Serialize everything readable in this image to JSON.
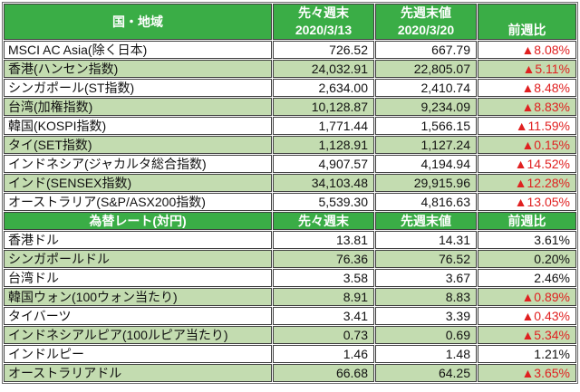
{
  "colors": {
    "header_green": "#3aad46",
    "stripe_green": "#c3dcb0",
    "negative_red": "#e02020",
    "border_gray": "#3f3f3f",
    "header_text": "#ffffff"
  },
  "stock_table": {
    "headers": {
      "region": "国・地域",
      "prev_week": "先々週末",
      "prev_week_date": "2020/3/13",
      "last_week": "先週末値",
      "last_week_date": "2020/3/20",
      "wow_change": "前週比"
    },
    "rows": [
      {
        "label": "MSCI AC Asia(除く日本)",
        "prev": "726.52",
        "last": "667.79",
        "change": "▲8.08%",
        "negative": true
      },
      {
        "label": "香港(ハンセン指数)",
        "prev": "24,032.91",
        "last": "22,805.07",
        "change": "▲5.11%",
        "negative": true
      },
      {
        "label": "シンガポール(ST指数)",
        "prev": "2,634.00",
        "last": "2,410.74",
        "change": "▲8.48%",
        "negative": true
      },
      {
        "label": "台湾(加権指数)",
        "prev": "10,128.87",
        "last": "9,234.09",
        "change": "▲8.83%",
        "negative": true
      },
      {
        "label": "韓国(KOSPI指数)",
        "prev": "1,771.44",
        "last": "1,566.15",
        "change": "▲11.59%",
        "negative": true
      },
      {
        "label": "タイ(SET指数)",
        "prev": "1,128.91",
        "last": "1,127.24",
        "change": "▲0.15%",
        "negative": true
      },
      {
        "label": "インドネシア(ジャカルタ総合指数)",
        "prev": "4,907.57",
        "last": "4,194.94",
        "change": "▲14.52%",
        "negative": true
      },
      {
        "label": "インド(SENSEX指数)",
        "prev": "34,103.48",
        "last": "29,915.96",
        "change": "▲12.28%",
        "negative": true
      },
      {
        "label": "オーストラリア(S&P/ASX200指数)",
        "prev": "5,539.30",
        "last": "4,816.63",
        "change": "▲13.05%",
        "negative": true
      }
    ]
  },
  "fx_table": {
    "headers": {
      "rate": "為替レート(対円)",
      "prev_week": "先々週末",
      "last_week": "先週末値",
      "wow_change": "前週比"
    },
    "rows": [
      {
        "label": "香港ドル",
        "prev": "13.81",
        "last": "14.31",
        "change": "3.61%",
        "negative": false
      },
      {
        "label": "シンガポールドル",
        "prev": "76.36",
        "last": "76.52",
        "change": "0.20%",
        "negative": false
      },
      {
        "label": "台湾ドル",
        "prev": "3.58",
        "last": "3.67",
        "change": "2.46%",
        "negative": false
      },
      {
        "label": "韓国ウォン(100ウォン当たり)",
        "prev": "8.91",
        "last": "8.83",
        "change": "▲0.89%",
        "negative": true
      },
      {
        "label": "タイバーツ",
        "prev": "3.41",
        "last": "3.39",
        "change": "▲0.43%",
        "negative": true
      },
      {
        "label": "インドネシアルピア(100ルピア当たり)",
        "prev": "0.73",
        "last": "0.69",
        "change": "▲5.34%",
        "negative": true
      },
      {
        "label": "インドルピー",
        "prev": "1.46",
        "last": "1.48",
        "change": "1.21%",
        "negative": false
      },
      {
        "label": "オーストラリアドル",
        "prev": "66.68",
        "last": "64.25",
        "change": "▲3.65%",
        "negative": true
      }
    ]
  }
}
